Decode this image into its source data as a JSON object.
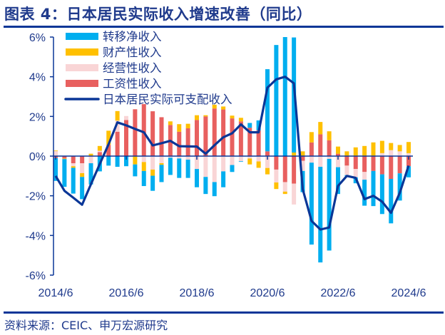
{
  "title": "图表 4：日本居民实际收入增速改善（同比）",
  "source": "资料来源：CEIC、申万宏源研究",
  "chart_data": {
    "type": "bar",
    "subtype": "stacked bar with line overlay",
    "title": "图表 4：日本居民实际收入增速改善（同比）",
    "xlabel": "",
    "ylabel": "",
    "x_start": "2014/6",
    "x_frequency": "quarterly",
    "x_tick_labels": [
      "2014/6",
      "2016/6",
      "2018/6",
      "2020/6",
      "2022/6",
      "2024/6"
    ],
    "y_tick_labels": [
      "6%",
      "4%",
      "2%",
      "0%",
      "-2%",
      "-4%",
      "-6%"
    ],
    "ylim": [
      -6,
      6
    ],
    "y_unit": "%",
    "grid": false,
    "legend_position": "top-left",
    "categories": [
      "2014/6",
      "2014/9",
      "2014/12",
      "2015/3",
      "2015/6",
      "2015/9",
      "2015/12",
      "2016/3",
      "2016/6",
      "2016/9",
      "2016/12",
      "2017/3",
      "2017/6",
      "2017/9",
      "2017/12",
      "2018/3",
      "2018/6",
      "2018/9",
      "2018/12",
      "2019/3",
      "2019/6",
      "2019/9",
      "2019/12",
      "2020/3",
      "2020/6",
      "2020/9",
      "2020/12",
      "2021/3",
      "2021/6",
      "2021/9",
      "2021/12",
      "2022/3",
      "2022/6",
      "2022/9",
      "2022/12",
      "2023/3",
      "2023/6",
      "2023/9",
      "2023/12",
      "2024/3",
      "2024/6"
    ],
    "series": [
      {
        "name": "转移净收入",
        "kind": "bar",
        "color": "#00aeef",
        "values": [
          -1.15,
          -1.4,
          -1.3,
          -1.12,
          -1.07,
          -0.77,
          -0.48,
          -0.54,
          -0.51,
          -0.6,
          -0.76,
          -0.76,
          -0.87,
          -0.87,
          -0.98,
          -0.92,
          -0.92,
          -0.86,
          -0.71,
          -0.8,
          -0.35,
          -0.03,
          0.24,
          0.5,
          4.14,
          5.6,
          6.0,
          5.8,
          -1.07,
          -4.13,
          -4.82,
          -4.62,
          -1.35,
          -0.05,
          -0.3,
          -1.31,
          -1.77,
          -2.0,
          -2.24,
          -1.37,
          -0.56
        ]
      },
      {
        "name": "财产性收入",
        "kind": "bar",
        "color": "#ffc000",
        "values": [
          0.03,
          -0.03,
          -0.08,
          -0.19,
          0.12,
          0.24,
          0.71,
          0.48,
          0,
          -0.42,
          -0.45,
          -0.31,
          -0.08,
          0.18,
          0.38,
          0.23,
          0.24,
          0.06,
          0.19,
          0.15,
          0.14,
          0.18,
          -0.3,
          -0.32,
          -0.32,
          -0.33,
          -0.12,
          0.18,
          0.24,
          0.52,
          0.62,
          0.45,
          0.36,
          0.24,
          0.44,
          0.51,
          0.69,
          0.62,
          0.36,
          0.32,
          0.56
        ]
      },
      {
        "name": "经营性收入",
        "kind": "bar",
        "color": "#f9d5d6",
        "values": [
          0.25,
          0,
          -0.15,
          -0.5,
          -0.36,
          0.07,
          0,
          0.56,
          0.2,
          0,
          -0.3,
          -0.68,
          -0.36,
          -0.08,
          -0.12,
          -0.18,
          -0.65,
          -1.05,
          -1.31,
          -0.77,
          -0.45,
          -0.26,
          -0.12,
          -0.27,
          -0.6,
          -0.65,
          -0.48,
          -1.05,
          -0.51,
          -0.33,
          -0.54,
          -0.14,
          -0.56,
          -0.48,
          -0.42,
          -0.39,
          0,
          0.15,
          0.3,
          0.24,
          0.15
        ]
      },
      {
        "name": "工资性收入",
        "kind": "bar",
        "color": "#e8605f",
        "values": [
          -0.1,
          -0.12,
          -0.36,
          -0.36,
          0,
          0.2,
          0.57,
          1.23,
          1.82,
          2.36,
          2.62,
          2.26,
          1.96,
          1.57,
          1.23,
          1.4,
          1.82,
          2.0,
          2.4,
          2.35,
          1.9,
          1.75,
          1.43,
          1.3,
          0.24,
          -0.68,
          -1.31,
          -1.39,
          -0.24,
          0.69,
          1.1,
          0.8,
          0.12,
          -0.48,
          -0.65,
          -0.8,
          -0.75,
          -0.92,
          -1.15,
          -0.87,
          -0.51
        ]
      },
      {
        "name": "日本居民实际可支配收入",
        "kind": "line",
        "color": "#0a3697",
        "values": [
          -1.0,
          -1.75,
          -2.1,
          -2.45,
          -1.42,
          -0.4,
          0.6,
          1.7,
          1.55,
          1.37,
          1.2,
          0.54,
          0.65,
          0.77,
          0.5,
          0.49,
          0.48,
          0.12,
          0.55,
          0.95,
          1.15,
          1.6,
          1.2,
          1.2,
          3.45,
          3.87,
          4.0,
          3.67,
          -1.67,
          -3.27,
          -3.7,
          -3.6,
          -1.5,
          -1.0,
          -1.1,
          -2.17,
          -2.0,
          -2.3,
          -2.86,
          -1.85,
          -0.48
        ]
      }
    ]
  }
}
